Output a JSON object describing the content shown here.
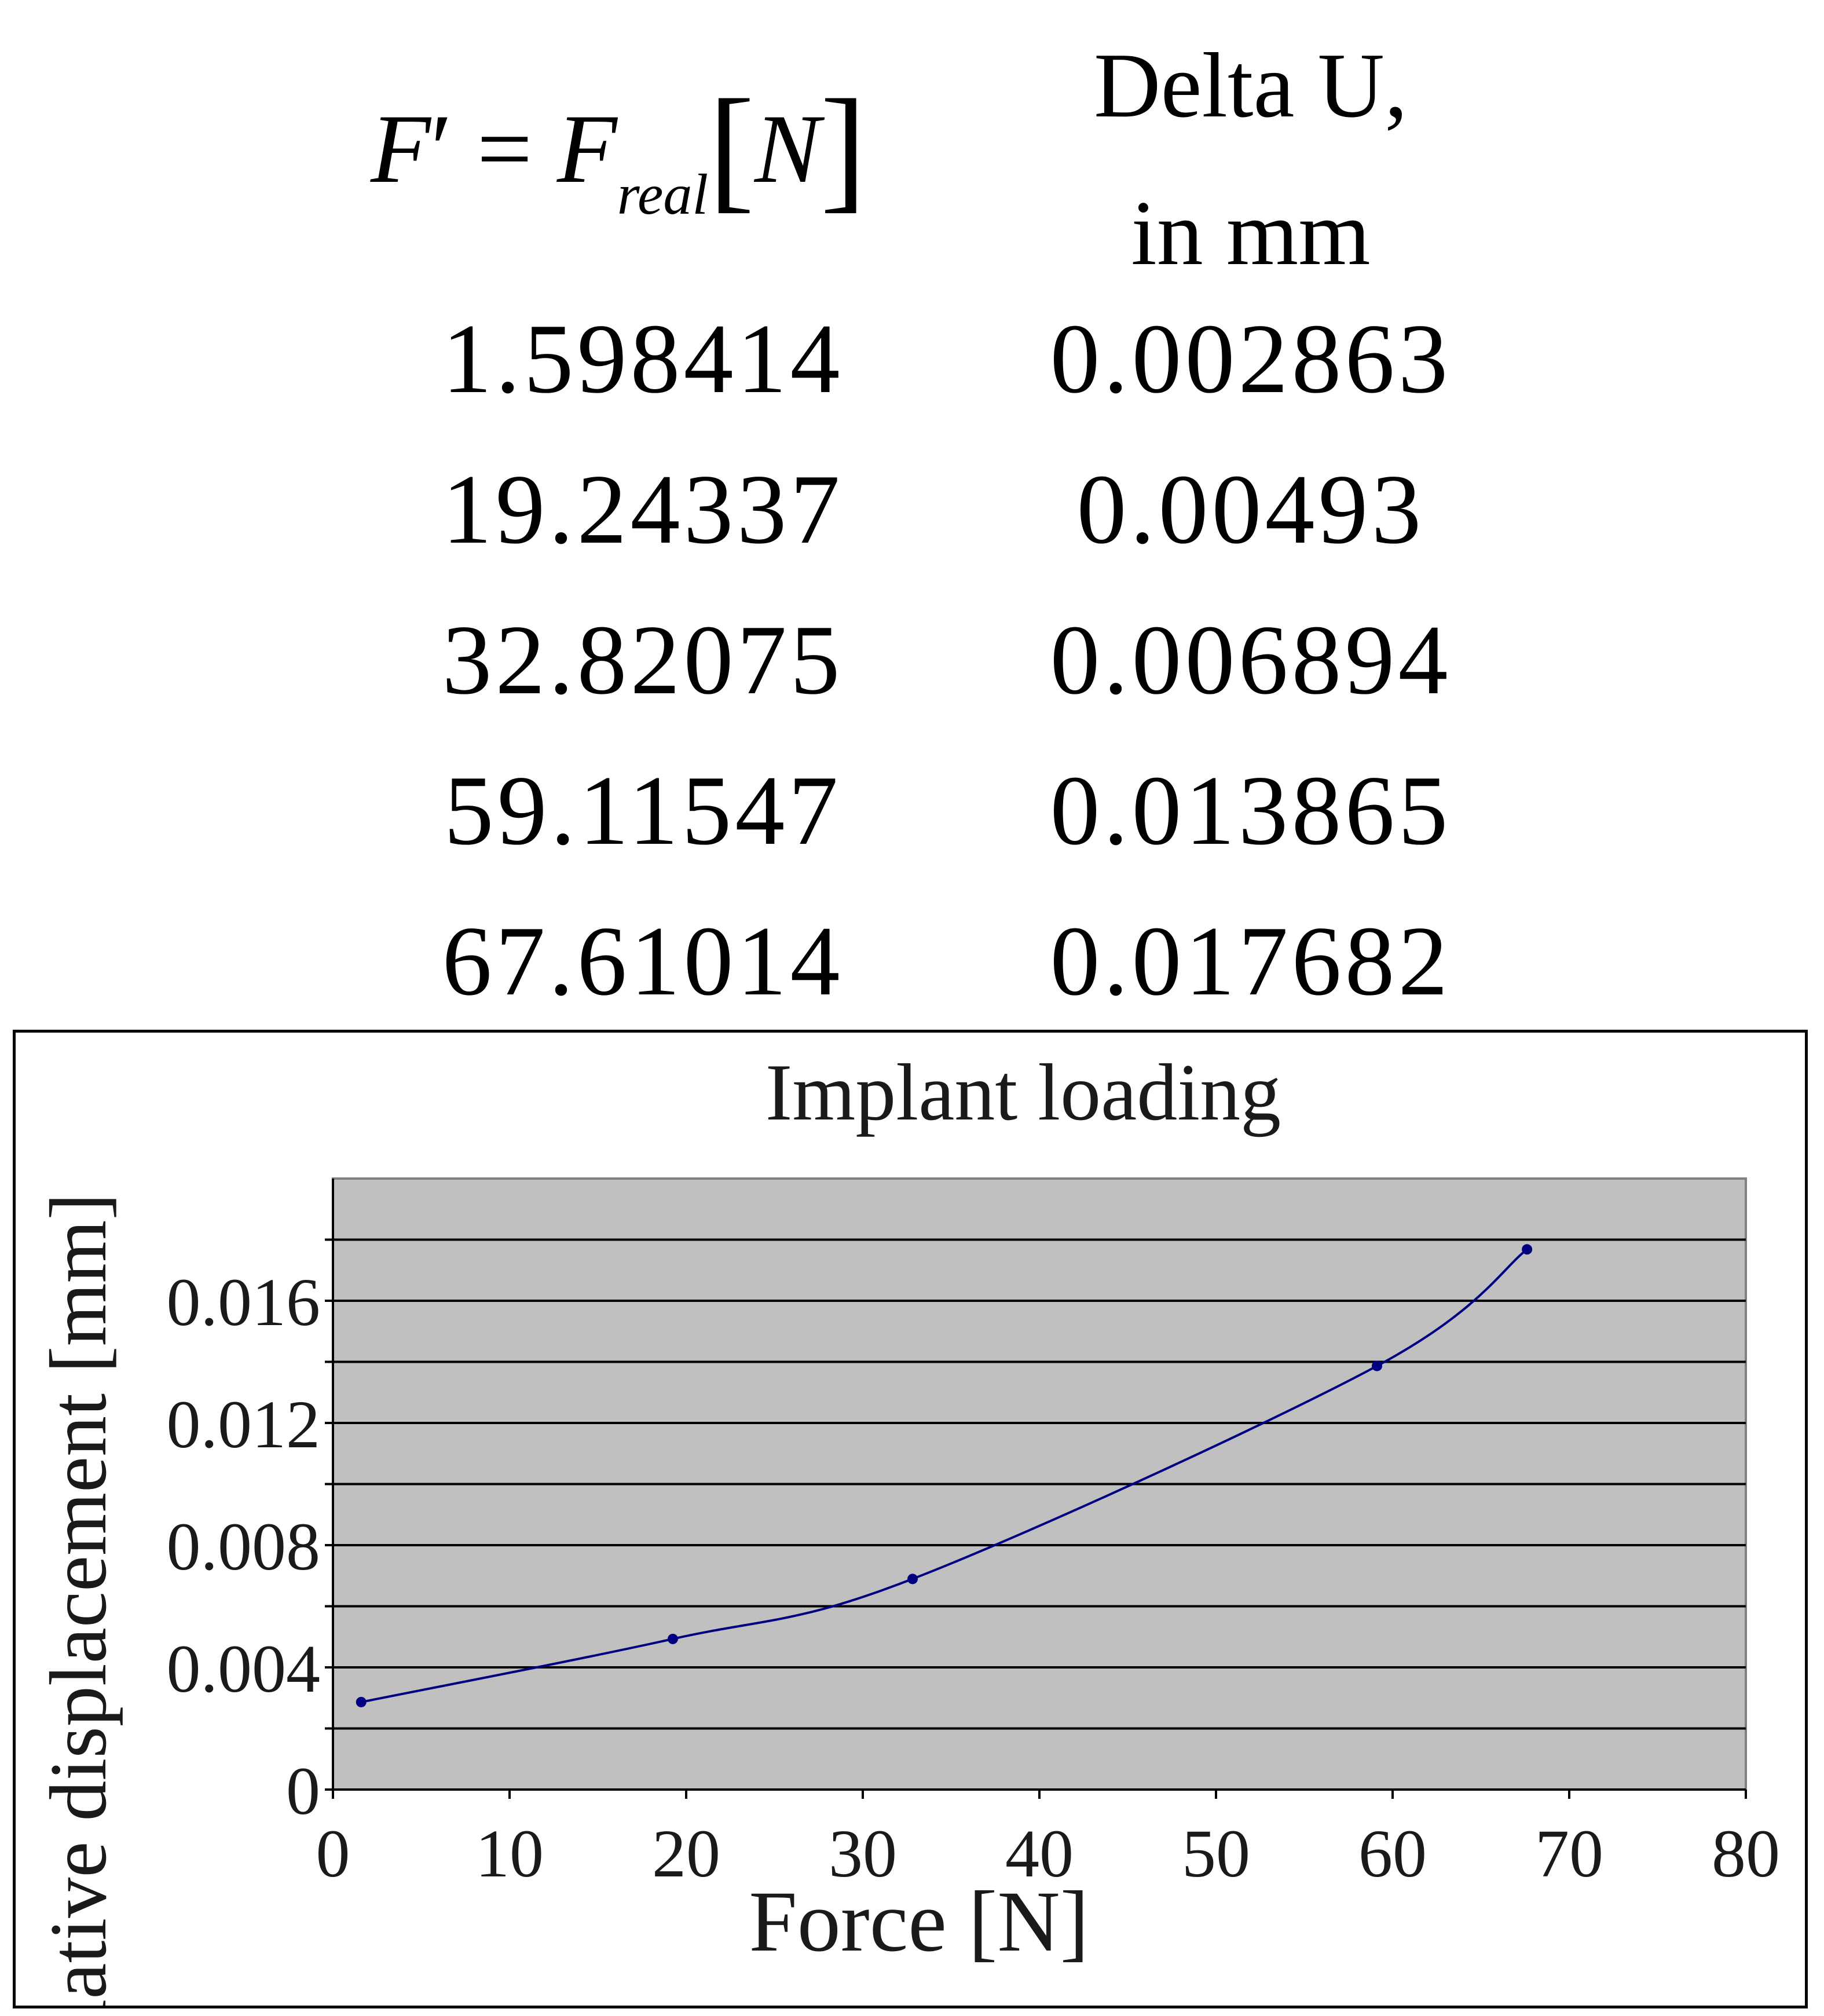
{
  "table": {
    "header_formula": {
      "F": "F",
      "prime": "′",
      "eq": " = ",
      "F_real": "F",
      "sub_real": "real",
      "unit_open": "[",
      "unit": "N",
      "unit_close": "]"
    },
    "header_delta_line1": "Delta U,",
    "header_delta_line2": "in mm",
    "rows": [
      {
        "force": "1.598414",
        "delta": "0.002863"
      },
      {
        "force": "19.24337",
        "delta": "0.00493"
      },
      {
        "force": "32.82075",
        "delta": "0.006894"
      },
      {
        "force": "59.11547",
        "delta": "0.013865"
      },
      {
        "force": "67.61014",
        "delta": "0.017682"
      }
    ]
  },
  "chart_data": {
    "type": "line",
    "title": "Implant loading",
    "xlabel": "Force [N]",
    "ylabel": "Relative displacement [mm]",
    "xlim": [
      0,
      80
    ],
    "ylim": [
      0,
      0.02
    ],
    "x_ticks": [
      "0",
      "10",
      "20",
      "30",
      "40",
      "50",
      "60",
      "70",
      "80"
    ],
    "y_ticks": [
      "0",
      "0.004",
      "0.008",
      "0.012",
      "0.016"
    ],
    "gridlines_y": [
      0.002,
      0.004,
      0.006,
      0.008,
      0.01,
      0.012,
      0.014,
      0.016,
      0.018
    ],
    "grid": true,
    "smooth": true,
    "series": [
      {
        "x": [
          1.598414,
          19.24337,
          32.82075,
          59.11547,
          67.61014
        ],
        "y": [
          0.002863,
          0.00493,
          0.006894,
          0.013865,
          0.017682
        ]
      }
    ],
    "colors": {
      "line": "#000080",
      "plot_background": "#c0c0c0",
      "gridline": "#000000",
      "axis_line": "#000000"
    }
  }
}
